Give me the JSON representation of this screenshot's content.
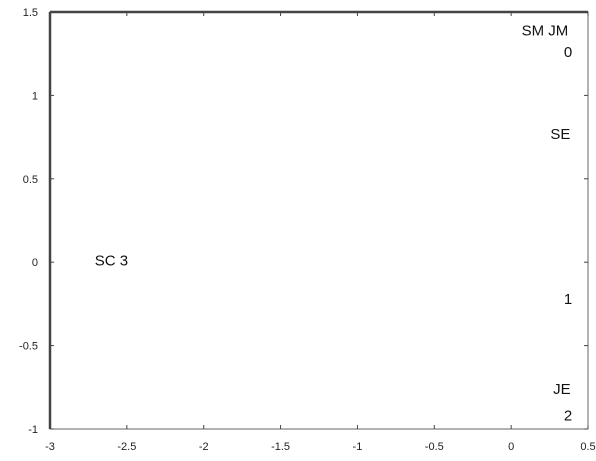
{
  "chart_data": {
    "type": "scatter",
    "title": "",
    "xlabel": "",
    "ylabel": "",
    "xlim": [
      -3,
      0.5
    ],
    "ylim": [
      -1,
      1.5
    ],
    "xticks": [
      "-3",
      "-2.5",
      "-2",
      "-1.5",
      "-1",
      "-0.5",
      "0",
      "0.5"
    ],
    "yticks": [
      "1.5",
      "1",
      "0.5",
      "0",
      "-0.5",
      "-1"
    ],
    "grid": false,
    "points": [
      {
        "label": "SM JM",
        "x": 0.22,
        "y": 1.39
      },
      {
        "label": "0",
        "x": 0.37,
        "y": 1.26
      },
      {
        "label": "SE",
        "x": 0.32,
        "y": 0.77
      },
      {
        "label": "SC 3",
        "x": -2.6,
        "y": 0.01
      },
      {
        "label": "1",
        "x": 0.37,
        "y": -0.22
      },
      {
        "label": "JE",
        "x": 0.33,
        "y": -0.76
      },
      {
        "label": "2",
        "x": 0.37,
        "y": -0.92
      }
    ]
  }
}
